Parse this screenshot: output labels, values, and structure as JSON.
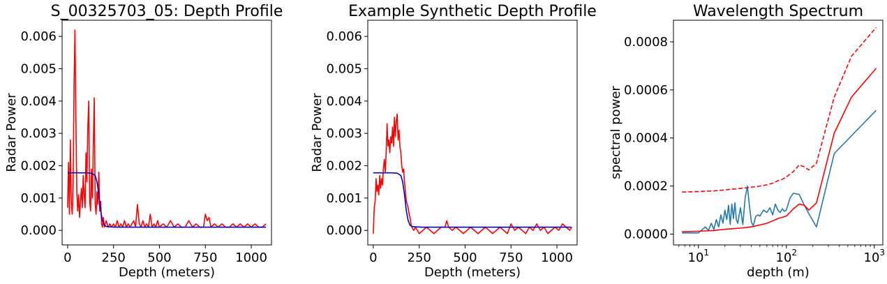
{
  "chart_data": [
    {
      "type": "line",
      "title": "S_00325703_05: Depth Profile",
      "xlabel": "Depth (meters)",
      "ylabel": "Radar Power",
      "xlim": [
        -30,
        1110
      ],
      "ylim": [
        -0.00045,
        0.0065
      ],
      "xticks": [
        0,
        250,
        500,
        750,
        1000
      ],
      "xtick_labels": [
        "0",
        "250",
        "500",
        "750",
        "1000"
      ],
      "yticks": [
        0,
        0.001,
        0.002,
        0.003,
        0.004,
        0.005,
        0.006
      ],
      "ytick_labels": [
        "0.000",
        "0.001",
        "0.002",
        "0.003",
        "0.004",
        "0.005",
        "0.006"
      ],
      "grid": false,
      "series": [
        {
          "color": "#ff0000",
          "style": "solid",
          "x": [
            0,
            5,
            10,
            15,
            20,
            25,
            30,
            35,
            40,
            45,
            50,
            55,
            60,
            65,
            70,
            75,
            80,
            85,
            90,
            95,
            100,
            105,
            110,
            115,
            120,
            125,
            130,
            135,
            140,
            145,
            150,
            155,
            160,
            165,
            170,
            175,
            180,
            185,
            190,
            195,
            200,
            210,
            220,
            230,
            240,
            250,
            260,
            270,
            280,
            290,
            300,
            310,
            320,
            330,
            340,
            350,
            360,
            370,
            380,
            390,
            400,
            410,
            420,
            430,
            440,
            450,
            460,
            470,
            480,
            490,
            500,
            520,
            540,
            560,
            580,
            600,
            620,
            640,
            660,
            680,
            700,
            720,
            740,
            750,
            760,
            770,
            780,
            800,
            820,
            840,
            860,
            880,
            900,
            920,
            940,
            960,
            980,
            1000,
            1020,
            1040,
            1060,
            1080
          ],
          "values": [
            0.0007,
            0.0021,
            0.0005,
            0.0028,
            0.0009,
            0.0005,
            0.0015,
            0.0045,
            0.0062,
            0.0035,
            0.0012,
            0.0006,
            0.0011,
            0.0004,
            0.0009,
            0.0013,
            0.0007,
            0.0017,
            0.0011,
            0.0007,
            0.0024,
            0.0015,
            0.0032,
            0.004,
            0.0009,
            0.0006,
            0.0019,
            0.001,
            0.0027,
            0.0041,
            0.0008,
            0.0005,
            0.0012,
            0.0008,
            0.0018,
            0.0006,
            0.0009,
            0.0002,
            0.0001,
            0.0004,
            0.0001,
            0.0003,
            0.0001,
            0.0002,
            0.0001,
            0.0002,
            0.0001,
            0.0003,
            0.0001,
            0.0002,
            0.0001,
            0.0003,
            0.0001,
            0.0002,
            0.0001,
            0.0002,
            0.0003,
            0.0001,
            0.0008,
            0.0002,
            0.0001,
            0.0003,
            0.0001,
            0.0002,
            0.0001,
            0.0005,
            0.0001,
            0.0002,
            0.0001,
            0.0003,
            0.0001,
            0.0002,
            0.0001,
            0.0003,
            0.0001,
            0.0002,
            0.0001,
            0.0001,
            0.0003,
            0.0001,
            0.0002,
            0.0001,
            0.0001,
            0.0005,
            0.0003,
            0.0004,
            0.0001,
            0.0002,
            0.0001,
            0.0002,
            0.0001,
            0.0001,
            0.0002,
            0.0001,
            0.0002,
            0.0001,
            0.0002,
            0.0001,
            0.0002,
            0.0001,
            0.0001,
            0.0002
          ]
        },
        {
          "color": "#0000cd",
          "style": "solid",
          "x": [
            0,
            50,
            100,
            130,
            150,
            160,
            170,
            180,
            190,
            200,
            210,
            230,
            260,
            300,
            500,
            750,
            1000,
            1080
          ],
          "values": [
            0.00178,
            0.00178,
            0.00178,
            0.00177,
            0.0017,
            0.0015,
            0.0011,
            0.0006,
            0.0003,
            0.00016,
            0.00012,
            0.00011,
            0.0001,
            0.0001,
            0.0001,
            0.0001,
            0.0001,
            0.0001
          ]
        }
      ]
    },
    {
      "type": "line",
      "title": "Example Synthetic Depth Profile",
      "xlabel": "Depth (meters)",
      "ylabel": "Radar Power",
      "xlim": [
        -30,
        1110
      ],
      "ylim": [
        -0.00045,
        0.0065
      ],
      "xticks": [
        0,
        250,
        500,
        750,
        1000
      ],
      "xtick_labels": [
        "0",
        "250",
        "500",
        "750",
        "1000"
      ],
      "yticks": [
        0,
        0.001,
        0.002,
        0.003,
        0.004,
        0.005,
        0.006
      ],
      "ytick_labels": [
        "0.000",
        "0.001",
        "0.002",
        "0.003",
        "0.004",
        "0.005",
        "0.006"
      ],
      "grid": false,
      "series": [
        {
          "color": "#ff0000",
          "style": "solid",
          "x": [
            0,
            5,
            10,
            15,
            20,
            25,
            30,
            35,
            40,
            45,
            50,
            55,
            60,
            65,
            70,
            75,
            80,
            85,
            90,
            95,
            100,
            105,
            110,
            115,
            120,
            125,
            130,
            135,
            140,
            145,
            150,
            155,
            160,
            165,
            170,
            175,
            180,
            185,
            190,
            195,
            200,
            205,
            210,
            220,
            230,
            240,
            250,
            270,
            290,
            310,
            330,
            350,
            370,
            390,
            400,
            410,
            430,
            450,
            470,
            490,
            510,
            530,
            550,
            570,
            590,
            610,
            630,
            650,
            670,
            690,
            710,
            730,
            750,
            770,
            790,
            810,
            830,
            850,
            870,
            890,
            910,
            930,
            950,
            970,
            990,
            1010,
            1030,
            1050,
            1070,
            1080
          ],
          "values": [
            -0.0001,
            0.0007,
            0.0009,
            0.0016,
            0.0012,
            0.0014,
            0.0011,
            0.0017,
            0.0013,
            0.0016,
            0.0014,
            0.0019,
            0.0022,
            0.0018,
            0.0024,
            0.0033,
            0.0026,
            0.0028,
            0.0024,
            0.0029,
            0.0027,
            0.0032,
            0.0026,
            0.0035,
            0.0029,
            0.0034,
            0.0036,
            0.0028,
            0.0031,
            0.0026,
            0.0024,
            0.002,
            0.0018,
            0.0019,
            0.0015,
            0.0012,
            0.0009,
            0.0008,
            0.0007,
            0.0005,
            0.0004,
            0.0002,
            0.0001,
            0.0,
            0.0001,
            0.0,
            -0.0001,
            0.0,
            0.0001,
            0.0,
            -0.0001,
            0.0,
            0.0001,
            0.0001,
            0.0003,
            0.0001,
            0.0,
            0.0001,
            0.0,
            -0.0001,
            0.0,
            0.0001,
            0.0,
            -0.0001,
            0.0,
            0.0001,
            0.0,
            -0.0001,
            0.0,
            0.0001,
            0.0,
            -0.0001,
            0.0002,
            0.0,
            0.0001,
            0.0,
            -0.0001,
            0.0001,
            0.0,
            0.0002,
            0.0,
            0.0001,
            -0.0001,
            0.0,
            0.0001,
            0.0,
            0.0002,
            0.0001,
            0.0,
            0.0001
          ]
        },
        {
          "color": "#0000cd",
          "style": "solid",
          "x": [
            0,
            50,
            100,
            130,
            150,
            160,
            170,
            180,
            190,
            200,
            210,
            230,
            260,
            300,
            500,
            750,
            1000,
            1080
          ],
          "values": [
            0.00178,
            0.00178,
            0.00178,
            0.00177,
            0.0017,
            0.0015,
            0.0011,
            0.0006,
            0.0003,
            0.00016,
            0.00012,
            0.00011,
            0.0001,
            0.0001,
            0.0001,
            0.0001,
            0.0001,
            0.0001
          ]
        }
      ]
    },
    {
      "type": "line",
      "title": "Wavelength Spectrum",
      "xlabel": "depth (m)",
      "ylabel": "spectral power",
      "xscale": "log",
      "xlim": [
        5.2,
        1250
      ],
      "ylim": [
        -4.5e-05,
        0.00089
      ],
      "xticks": [
        10,
        100,
        1000
      ],
      "xtick_labels": [
        {
          "base": "10",
          "exp": "1"
        },
        {
          "base": "10",
          "exp": "2"
        },
        {
          "base": "10",
          "exp": "3"
        }
      ],
      "yticks": [
        0,
        0.0002,
        0.0004,
        0.0006,
        0.0008
      ],
      "ytick_labels": [
        "0.0000",
        "0.0002",
        "0.0004",
        "0.0006",
        "0.0008"
      ],
      "grid": false,
      "series": [
        {
          "color": "#1f77b4",
          "style": "solid",
          "x": [
            6.5,
            10,
            12,
            13,
            14,
            15,
            16,
            17,
            18,
            19,
            20,
            21,
            22,
            23,
            24,
            25,
            26,
            27,
            28,
            30,
            32,
            34,
            36,
            38,
            40,
            42,
            45,
            48,
            50,
            55,
            60,
            65,
            70,
            75,
            80,
            85,
            90,
            95,
            100,
            110,
            120,
            140,
            160,
            180,
            220,
            350,
            1050
          ],
          "values": [
            5e-06,
            5e-06,
            3e-05,
            1.5e-05,
            4.5e-05,
            2e-05,
            6e-05,
            3e-05,
            8e-05,
            4.5e-05,
            0.0001,
            6e-05,
            0.00012,
            4e-05,
            0.000125,
            6.5e-05,
            0.00013,
            6e-05,
            4.5e-05,
            0.00011,
            4e-05,
            0.00015,
            0.0002,
            0.00012,
            5e-05,
            3.5e-05,
            7.5e-05,
            8e-05,
            7.5e-05,
            0.0001,
            9e-05,
            0.00011,
            8e-05,
            0.000125,
            0.0001,
            9e-05,
            0.000105,
            9.5e-05,
            0.0001,
            0.00015,
            0.00017,
            0.000165,
            0.00012,
            8.5e-05,
            3e-05,
            0.000335,
            0.000515
          ]
        },
        {
          "color": "#ff0000",
          "style": "solid",
          "x": [
            6.5,
            10,
            15,
            20,
            30,
            40,
            50,
            60,
            70,
            80,
            90,
            100,
            120,
            140,
            160,
            180,
            220,
            350,
            550,
            1050
          ],
          "values": [
            1e-05,
            1.2e-05,
            1.5e-05,
            2e-05,
            2.5e-05,
            3e-05,
            3.8e-05,
            4.5e-05,
            5.5e-05,
            6.5e-05,
            7e-05,
            7.5e-05,
            0.000105,
            0.000125,
            0.00012,
            0.0001,
            0.00013,
            0.00042,
            0.00057,
            0.00069
          ]
        },
        {
          "color": "#ff0000",
          "style": "dashed",
          "x": [
            6.5,
            10,
            15,
            20,
            30,
            40,
            50,
            60,
            70,
            80,
            90,
            100,
            120,
            140,
            160,
            180,
            220,
            350,
            550,
            1050
          ],
          "values": [
            0.000175,
            0.000177,
            0.00018,
            0.000184,
            0.00019,
            0.000195,
            0.0002,
            0.000205,
            0.000212,
            0.000222,
            0.000228,
            0.000238,
            0.00026,
            0.000288,
            0.00028,
            0.000267,
            0.000295,
            0.00057,
            0.00074,
            0.00086
          ]
        }
      ]
    }
  ]
}
